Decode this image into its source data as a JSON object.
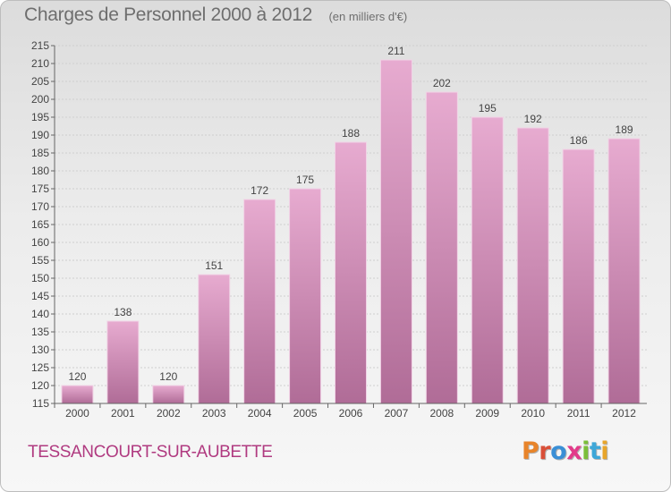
{
  "title": "Charges de Personnel 2000 à 2012",
  "subtitle": "(en milliers d'€)",
  "town": "TESSANCOURT-SUR-AUBETTE",
  "brand": {
    "letters": [
      "P",
      "r",
      "o",
      "x",
      "i",
      "t",
      "i"
    ],
    "colors": [
      "#e8842a",
      "#d94f38",
      "#3a8fd6",
      "#e23b8a",
      "#7bbf3a",
      "#3ea7d8",
      "#e8a52a"
    ]
  },
  "colors": {
    "bar_light": "#e7abd0",
    "bar_dark": "#b06c97",
    "axis": "#666666",
    "grid": "#cfcfcf"
  },
  "chart_data": {
    "type": "bar",
    "categories": [
      "2000",
      "2001",
      "2002",
      "2003",
      "2004",
      "2005",
      "2006",
      "2007",
      "2008",
      "2009",
      "2010",
      "2011",
      "2012"
    ],
    "values": [
      120,
      138,
      120,
      151,
      172,
      175,
      188,
      211,
      202,
      195,
      192,
      186,
      189
    ],
    "data_labels": [
      "120",
      "138",
      "120",
      "151",
      "172",
      "175",
      "188",
      "211",
      "202",
      "195",
      "192",
      "186",
      "189"
    ],
    "ylim": [
      115,
      215
    ],
    "yticks": [
      "115",
      "120",
      "125",
      "130",
      "135",
      "140",
      "145",
      "150",
      "155",
      "160",
      "165",
      "170",
      "175",
      "180",
      "185",
      "190",
      "195",
      "200",
      "205",
      "210",
      "215"
    ],
    "grid": true,
    "legend": "none"
  }
}
